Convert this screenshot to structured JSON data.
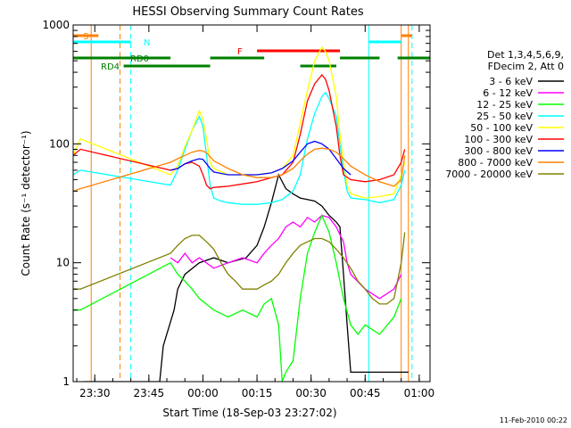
{
  "chart_data": {
    "type": "line",
    "title": "HESSI Observing Summary Count Rates",
    "xlabel": "Start Time (18-Sep-03 23:27:02)",
    "ylabel": "Count Rate (s⁻¹ detector⁻¹)",
    "y_scale": "log",
    "ylim": [
      1,
      1000
    ],
    "xlim_minutes_from_start": [
      -3,
      96
    ],
    "x_tick_labels": [
      "23:30",
      "23:45",
      "00:00",
      "00:15",
      "00:30",
      "00:45",
      "01:00"
    ],
    "y_tick_labels": [
      "1",
      "10",
      "100",
      "1000"
    ],
    "footer_date": "11-Feb-2010 00:22",
    "legend": {
      "header_line1": "Det 1,3,4,5,6,9,",
      "header_line2": "FDecim 2, Att 0",
      "placement": "right"
    },
    "series": [
      {
        "name": "3 - 6 keV",
        "color": "#000000",
        "points": [
          [
            0,
            1
          ],
          [
            21,
            1
          ],
          [
            22,
            2
          ],
          [
            25,
            4
          ],
          [
            26,
            6
          ],
          [
            28,
            8
          ],
          [
            32,
            10
          ],
          [
            36,
            11
          ],
          [
            40,
            10
          ],
          [
            45,
            11
          ],
          [
            48,
            14
          ],
          [
            50,
            20
          ],
          [
            52,
            32
          ],
          [
            54,
            55
          ],
          [
            56,
            42
          ],
          [
            58,
            38
          ],
          [
            60,
            35
          ],
          [
            62,
            34
          ],
          [
            64,
            33
          ],
          [
            66,
            30
          ],
          [
            68,
            25
          ],
          [
            70,
            22
          ],
          [
            71,
            20
          ],
          [
            72,
            8
          ],
          [
            73,
            3
          ],
          [
            74,
            1.2
          ],
          [
            90,
            1.2
          ]
        ]
      },
      {
        "name": "6 - 12 keV",
        "color": "#ff00ff",
        "points": [
          [
            24,
            11
          ],
          [
            26,
            10
          ],
          [
            28,
            12
          ],
          [
            30,
            10
          ],
          [
            32,
            11
          ],
          [
            36,
            9
          ],
          [
            40,
            10
          ],
          [
            44,
            11
          ],
          [
            48,
            10
          ],
          [
            50,
            12
          ],
          [
            52,
            14
          ],
          [
            54,
            16
          ],
          [
            56,
            20
          ],
          [
            58,
            22
          ],
          [
            60,
            20
          ],
          [
            62,
            24
          ],
          [
            64,
            22
          ],
          [
            66,
            25
          ],
          [
            68,
            24
          ],
          [
            70,
            20
          ],
          [
            72,
            15
          ],
          [
            73,
            10
          ],
          [
            74,
            8
          ],
          [
            78,
            6
          ],
          [
            82,
            5
          ],
          [
            86,
            6
          ],
          [
            88,
            8
          ]
        ]
      },
      {
        "name": "12 - 25 keV",
        "color": "#00ff00",
        "points": [
          [
            -3,
            4
          ],
          [
            -1,
            4
          ],
          [
            24,
            10
          ],
          [
            26,
            8
          ],
          [
            28,
            7
          ],
          [
            30,
            6
          ],
          [
            32,
            5
          ],
          [
            36,
            4
          ],
          [
            40,
            3.5
          ],
          [
            44,
            4
          ],
          [
            48,
            3.5
          ],
          [
            50,
            4.5
          ],
          [
            52,
            5
          ],
          [
            54,
            3
          ],
          [
            55,
            1
          ],
          [
            56,
            1.2
          ],
          [
            58,
            1.5
          ],
          [
            60,
            5
          ],
          [
            62,
            12
          ],
          [
            64,
            18
          ],
          [
            66,
            25
          ],
          [
            68,
            18
          ],
          [
            70,
            10
          ],
          [
            72,
            5
          ],
          [
            74,
            3
          ],
          [
            76,
            2.5
          ],
          [
            78,
            3
          ],
          [
            82,
            2.5
          ],
          [
            86,
            3.5
          ],
          [
            88,
            5
          ]
        ]
      },
      {
        "name": "25 - 50 keV",
        "color": "#00ffff",
        "points": [
          [
            -3,
            55
          ],
          [
            -1,
            60
          ],
          [
            24,
            45
          ],
          [
            26,
            60
          ],
          [
            28,
            90
          ],
          [
            30,
            130
          ],
          [
            32,
            170
          ],
          [
            33,
            140
          ],
          [
            34,
            80
          ],
          [
            35,
            45
          ],
          [
            36,
            35
          ],
          [
            38,
            33
          ],
          [
            40,
            32
          ],
          [
            44,
            31
          ],
          [
            48,
            31
          ],
          [
            52,
            32
          ],
          [
            55,
            34
          ],
          [
            58,
            40
          ],
          [
            60,
            55
          ],
          [
            62,
            110
          ],
          [
            64,
            180
          ],
          [
            66,
            250
          ],
          [
            67,
            270
          ],
          [
            68,
            240
          ],
          [
            70,
            170
          ],
          [
            71,
            100
          ],
          [
            72,
            60
          ],
          [
            73,
            40
          ],
          [
            74,
            35
          ],
          [
            78,
            34
          ],
          [
            82,
            32
          ],
          [
            86,
            34
          ],
          [
            88,
            45
          ],
          [
            89,
            60
          ]
        ]
      },
      {
        "name": "50 - 100 keV",
        "color": "#ffff00",
        "points": [
          [
            -3,
            80
          ],
          [
            -1,
            110
          ],
          [
            24,
            55
          ],
          [
            26,
            65
          ],
          [
            28,
            95
          ],
          [
            30,
            130
          ],
          [
            32,
            190
          ],
          [
            33,
            160
          ],
          [
            34,
            110
          ],
          [
            35,
            70
          ],
          [
            36,
            62
          ],
          [
            40,
            55
          ],
          [
            44,
            55
          ],
          [
            48,
            55
          ],
          [
            52,
            57
          ],
          [
            55,
            62
          ],
          [
            58,
            80
          ],
          [
            60,
            150
          ],
          [
            62,
            280
          ],
          [
            64,
            500
          ],
          [
            66,
            650
          ],
          [
            67,
            600
          ],
          [
            68,
            500
          ],
          [
            70,
            250
          ],
          [
            71,
            120
          ],
          [
            72,
            70
          ],
          [
            73,
            45
          ],
          [
            74,
            38
          ],
          [
            78,
            35
          ],
          [
            82,
            36
          ],
          [
            86,
            38
          ],
          [
            88,
            55
          ],
          [
            89,
            70
          ]
        ]
      },
      {
        "name": "100 - 300 keV",
        "color": "#ff0000",
        "points": [
          [
            -3,
            80
          ],
          [
            -1,
            90
          ],
          [
            24,
            60
          ],
          [
            26,
            62
          ],
          [
            28,
            68
          ],
          [
            30,
            70
          ],
          [
            32,
            65
          ],
          [
            33,
            55
          ],
          [
            34,
            45
          ],
          [
            35,
            42
          ],
          [
            36,
            43
          ],
          [
            40,
            44
          ],
          [
            44,
            46
          ],
          [
            48,
            48
          ],
          [
            52,
            52
          ],
          [
            55,
            55
          ],
          [
            58,
            70
          ],
          [
            60,
            120
          ],
          [
            62,
            230
          ],
          [
            64,
            320
          ],
          [
            66,
            380
          ],
          [
            67,
            350
          ],
          [
            68,
            280
          ],
          [
            70,
            140
          ],
          [
            71,
            80
          ],
          [
            72,
            55
          ],
          [
            74,
            50
          ],
          [
            78,
            48
          ],
          [
            82,
            50
          ],
          [
            86,
            55
          ],
          [
            88,
            70
          ],
          [
            89,
            90
          ]
        ]
      },
      {
        "name": "300 - 800 keV",
        "color": "#0000ff",
        "points": [
          [
            24,
            60
          ],
          [
            26,
            62
          ],
          [
            28,
            68
          ],
          [
            30,
            72
          ],
          [
            32,
            75
          ],
          [
            33,
            74
          ],
          [
            34,
            68
          ],
          [
            35,
            62
          ],
          [
            36,
            58
          ],
          [
            40,
            55
          ],
          [
            44,
            55
          ],
          [
            48,
            55
          ],
          [
            52,
            57
          ],
          [
            55,
            62
          ],
          [
            58,
            72
          ],
          [
            60,
            85
          ],
          [
            62,
            100
          ],
          [
            64,
            105
          ],
          [
            66,
            100
          ],
          [
            68,
            90
          ],
          [
            70,
            75
          ],
          [
            72,
            62
          ],
          [
            74,
            55
          ]
        ]
      },
      {
        "name": "800 - 7000 keV",
        "color": "#ff8000",
        "points": [
          [
            -3,
            40
          ],
          [
            -1,
            42
          ],
          [
            24,
            70
          ],
          [
            26,
            75
          ],
          [
            28,
            80
          ],
          [
            30,
            85
          ],
          [
            32,
            88
          ],
          [
            33,
            87
          ],
          [
            34,
            84
          ],
          [
            35,
            78
          ],
          [
            36,
            72
          ],
          [
            40,
            62
          ],
          [
            44,
            55
          ],
          [
            48,
            52
          ],
          [
            52,
            52
          ],
          [
            55,
            55
          ],
          [
            58,
            62
          ],
          [
            60,
            72
          ],
          [
            62,
            82
          ],
          [
            64,
            90
          ],
          [
            66,
            92
          ],
          [
            68,
            90
          ],
          [
            70,
            85
          ],
          [
            72,
            75
          ],
          [
            74,
            65
          ],
          [
            78,
            55
          ],
          [
            82,
            48
          ],
          [
            86,
            44
          ],
          [
            88,
            50
          ],
          [
            89,
            80
          ]
        ]
      },
      {
        "name": "7000 - 20000 keV",
        "color": "#808000",
        "points": [
          [
            -3,
            6
          ],
          [
            -1,
            6
          ],
          [
            24,
            12
          ],
          [
            26,
            14
          ],
          [
            28,
            16
          ],
          [
            30,
            17
          ],
          [
            32,
            17
          ],
          [
            34,
            15
          ],
          [
            36,
            13
          ],
          [
            38,
            10
          ],
          [
            40,
            8
          ],
          [
            42,
            7
          ],
          [
            44,
            6
          ],
          [
            46,
            6
          ],
          [
            48,
            6
          ],
          [
            50,
            6.5
          ],
          [
            52,
            7
          ],
          [
            54,
            8
          ],
          [
            56,
            10
          ],
          [
            58,
            12
          ],
          [
            60,
            14
          ],
          [
            62,
            15
          ],
          [
            64,
            16
          ],
          [
            66,
            16
          ],
          [
            68,
            15
          ],
          [
            70,
            13
          ],
          [
            72,
            11
          ],
          [
            74,
            9
          ],
          [
            76,
            7
          ],
          [
            78,
            6
          ],
          [
            80,
            5
          ],
          [
            82,
            4.5
          ],
          [
            84,
            4.5
          ],
          [
            86,
            5
          ],
          [
            88,
            10
          ],
          [
            89,
            18
          ]
        ]
      }
    ],
    "flags": [
      {
        "label": "S",
        "color": "#ff8000",
        "show_label": true,
        "segments": [
          [
            -3,
            4
          ],
          [
            88,
            91
          ]
        ]
      },
      {
        "label": "N",
        "color": "#00ffff",
        "show_label": true,
        "segments": [
          [
            -3,
            13
          ],
          [
            79,
            88
          ]
        ]
      },
      {
        "label": "RD0",
        "color": "#008000",
        "show_label": true,
        "segments": [
          [
            -3,
            11
          ],
          [
            11,
            24
          ],
          [
            35,
            50
          ],
          [
            71,
            82
          ],
          [
            87,
            96
          ]
        ]
      },
      {
        "label": "RD4",
        "color": "#008000",
        "show_label": true,
        "segments": [
          [
            11,
            35
          ],
          [
            60,
            70
          ]
        ]
      },
      {
        "label": "F",
        "color": "#ff0000",
        "show_label": true,
        "segments": [
          [
            48,
            71
          ]
        ]
      }
    ],
    "vlines": [
      {
        "x": 2,
        "color": "#ff8000",
        "style": "solid"
      },
      {
        "x": 10,
        "color": "#ff8000",
        "style": "dashed"
      },
      {
        "x": 13,
        "color": "#00ffff",
        "style": "dashed"
      },
      {
        "x": 79,
        "color": "#00ffff",
        "style": "solid"
      },
      {
        "x": 88,
        "color": "#ff8000",
        "style": "solid"
      },
      {
        "x": 90,
        "color": "#ff8000",
        "style": "solid"
      },
      {
        "x": 91,
        "color": "#00ffff",
        "style": "dashed"
      }
    ]
  }
}
